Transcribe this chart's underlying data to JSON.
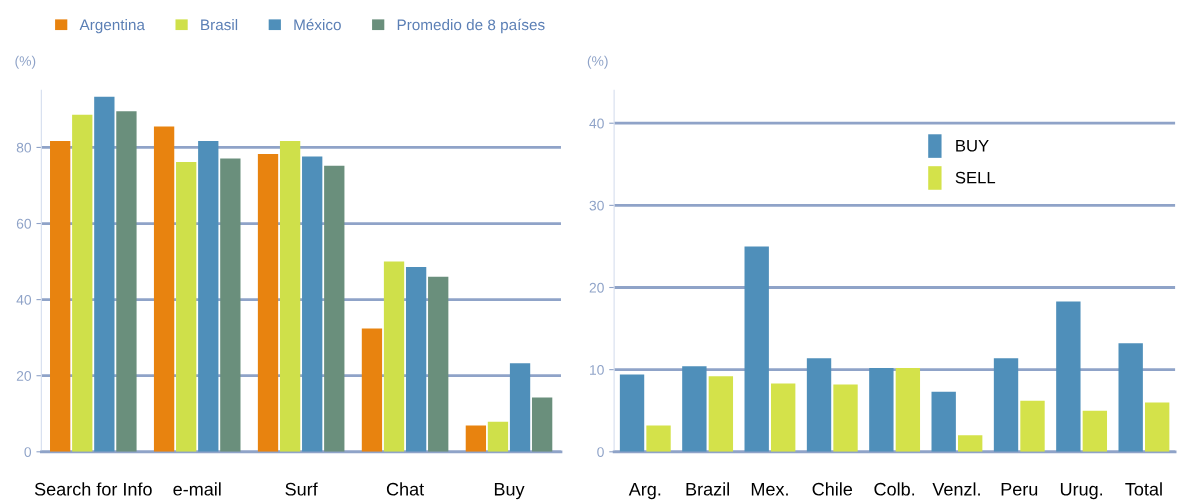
{
  "chart_data": [
    {
      "type": "bar",
      "categories": [
        "Search for Info",
        "e-mail",
        "Surf",
        "Chat",
        "Buy"
      ],
      "ylabel": "(%)",
      "ylim": [
        0,
        95
      ],
      "yticks": [
        0,
        20,
        40,
        60,
        80
      ],
      "grid": "y",
      "legend": "top left",
      "series": [
        {
          "name": "Argentina",
          "color": "#e8830f",
          "values": [
            81.7,
            85.5,
            78.3,
            32.4,
            6.9
          ]
        },
        {
          "name": "Brasil",
          "color": "#cfe04a",
          "values": [
            88.6,
            76.2,
            81.7,
            50,
            7.9
          ]
        },
        {
          "name": "México",
          "color": "#4f8fba",
          "values": [
            93.3,
            81.7,
            77.6,
            48.6,
            23.3
          ]
        },
        {
          "name": "Promedio de 8 países",
          "color": "#6a8f7c",
          "values": [
            89.5,
            77.1,
            75.2,
            46,
            14.3
          ]
        }
      ]
    },
    {
      "type": "bar",
      "categories": [
        "Arg.",
        "Brazil",
        "Mex.",
        "Chile",
        "Colb.",
        "Venzl.",
        "Peru",
        "Urug.",
        "Total"
      ],
      "ylabel": "(%)",
      "ylim": [
        0,
        44
      ],
      "yticks": [
        0,
        10,
        20,
        30,
        40
      ],
      "grid": "y",
      "legend": "upper center",
      "series": [
        {
          "name": "BUY",
          "color": "#4f8fba",
          "values": [
            9.4,
            10.4,
            25,
            11.4,
            10.2,
            7.3,
            11.4,
            18.3,
            13.2
          ]
        },
        {
          "name": "SELL",
          "color": "#d4e24a",
          "values": [
            3.2,
            9.2,
            8.3,
            8.2,
            10.2,
            2.0,
            6.2,
            5.0,
            6.0
          ]
        }
      ]
    }
  ]
}
